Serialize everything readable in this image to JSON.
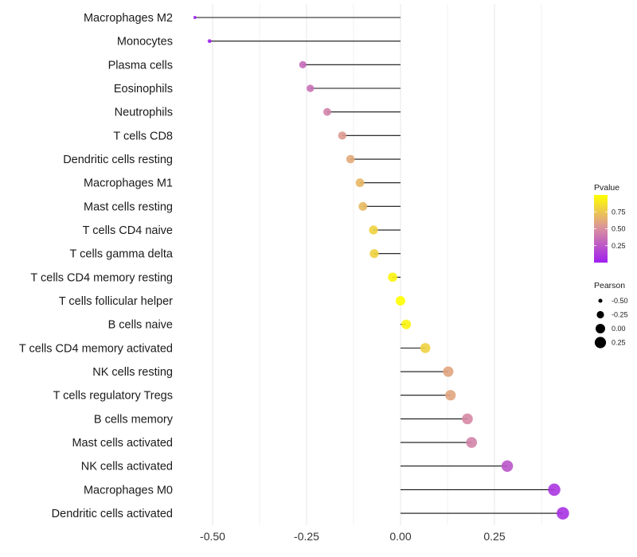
{
  "chart_data": {
    "type": "scatter",
    "subtype": "lollipop",
    "title": "",
    "xlabel": "",
    "ylabel": "",
    "xlim": [
      -0.56,
      0.45
    ],
    "x_ticks": [
      -0.5,
      -0.25,
      0.0,
      0.25
    ],
    "x_tick_labels": [
      "-0.50",
      "-0.25",
      "0.00",
      "0.25"
    ],
    "grid": true,
    "categories": [
      "Macrophages M2",
      "Monocytes",
      "Plasma cells",
      "Eosinophils",
      "Neutrophils",
      "T cells CD8",
      "Dendritic cells resting",
      "Macrophages M1",
      "Mast cells resting",
      "T cells CD4 naive",
      "T cells gamma delta",
      "T cells CD4 memory resting",
      "T cells follicular helper",
      "B cells naive",
      "T cells CD4 memory activated",
      "NK cells resting",
      "T cells regulatory  Tregs ",
      "B cells memory",
      "Mast cells activated",
      "NK cells activated",
      "Macrophages M0",
      "Dendritic cells activated"
    ],
    "pearson": [
      -0.547,
      -0.508,
      -0.26,
      -0.24,
      -0.195,
      -0.155,
      -0.133,
      -0.108,
      -0.1,
      -0.072,
      -0.07,
      -0.021,
      0.0,
      0.015,
      0.066,
      0.127,
      0.133,
      0.178,
      0.189,
      0.284,
      0.409,
      0.432
    ],
    "pvalue": [
      0.0,
      0.01,
      0.33,
      0.36,
      0.44,
      0.55,
      0.62,
      0.68,
      0.69,
      0.8,
      0.8,
      0.95,
      1.0,
      0.95,
      0.8,
      0.6,
      0.6,
      0.47,
      0.45,
      0.24,
      0.1,
      0.08
    ],
    "color_scale": {
      "low": "#a020f0",
      "high": "#ffff00",
      "range": [
        0.0,
        1.0
      ]
    },
    "legend": {
      "position": "right",
      "color_title": "Pvalue",
      "color_ticks": [
        0.75,
        0.5,
        0.25
      ],
      "color_tick_labels": [
        "0.75",
        "0.50",
        "0.25"
      ],
      "size_title": "Pearson",
      "size_values": [
        -0.5,
        -0.25,
        0.0,
        0.25
      ],
      "size_tick_labels": [
        "-0.50",
        "-0.25",
        "0.00",
        "0.25"
      ]
    }
  }
}
